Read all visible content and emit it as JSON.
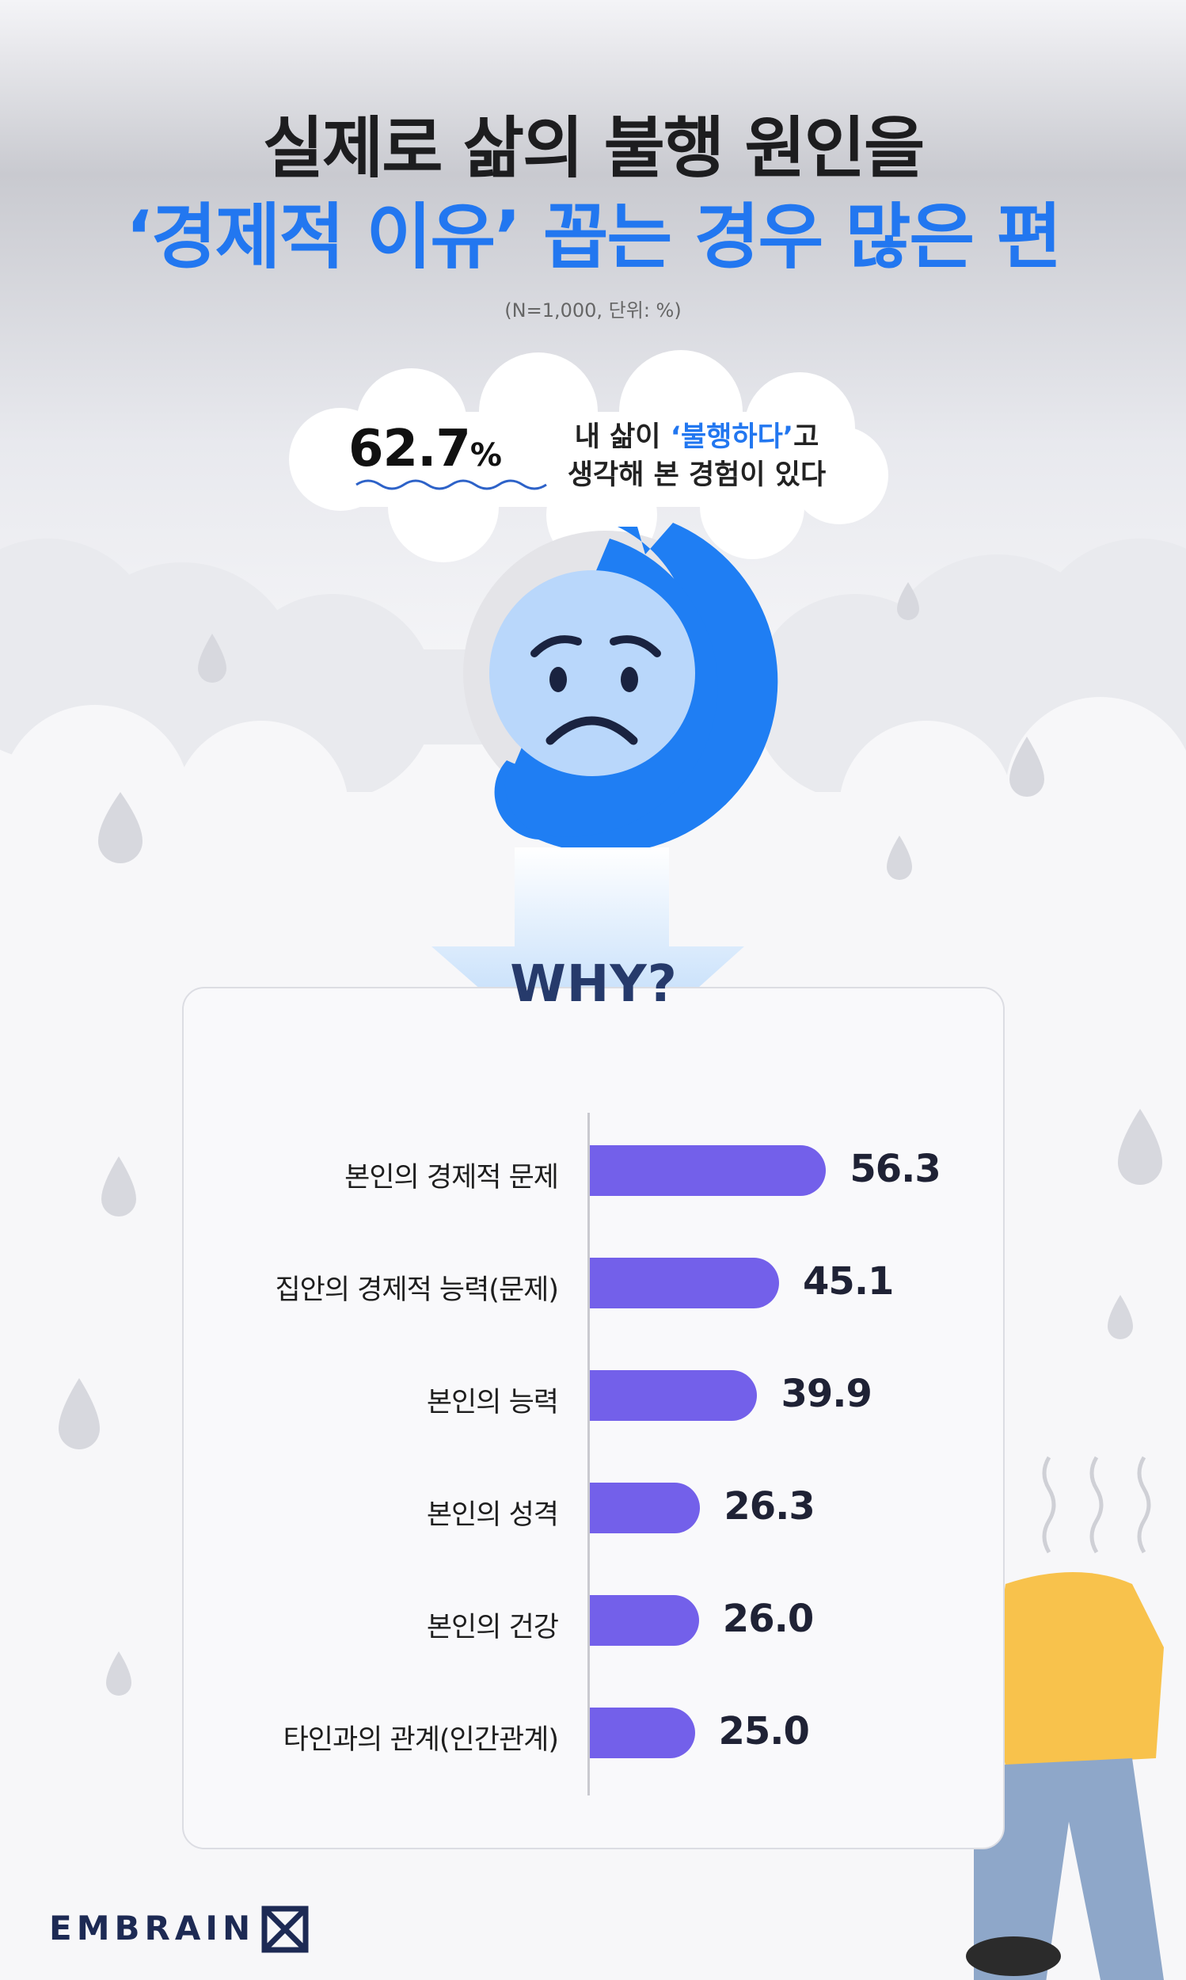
{
  "title_line1": "실제로 삶의 불행 원인을",
  "title_line2": "‘경제적 이유’ 꼽는 경우 많은 편",
  "note": "(N=1,000, 단위: %)",
  "bubble": {
    "percent": "62.7",
    "percent_sign": "%",
    "text_line1_pre": "내 삶이 ",
    "text_line1_highlight": "‘불행하다’",
    "text_line1_post": "고",
    "text_line2": "생각해 본 경험이 있다",
    "highlight_color": "#2277f0"
  },
  "why_label": "WHY?",
  "chart_data": {
    "type": "bar",
    "orientation": "horizontal",
    "categories": [
      "본인의 경제적 문제",
      "집안의 경제적 능력(문제)",
      "본인의 능력",
      "본인의 성격",
      "본인의 건강",
      "타인과의 관계(인간관계)"
    ],
    "values": [
      56.3,
      45.1,
      39.9,
      26.3,
      26.0,
      25.0
    ],
    "value_labels": [
      "56.3",
      "45.1",
      "39.9",
      "26.3",
      "26.0",
      "25.0"
    ],
    "bar_color": "#7360ea"
  },
  "brand": "EMBRAIN",
  "colors": {
    "accent_blue": "#2277f0",
    "face_blue": "#b9d7fb",
    "bar_purple": "#7360ea"
  },
  "icons": [
    "sad-face-icon",
    "raindrop-icon",
    "cloud-icon",
    "down-arrow-icon",
    "embrain-logo-icon",
    "sad-person-illustration"
  ]
}
